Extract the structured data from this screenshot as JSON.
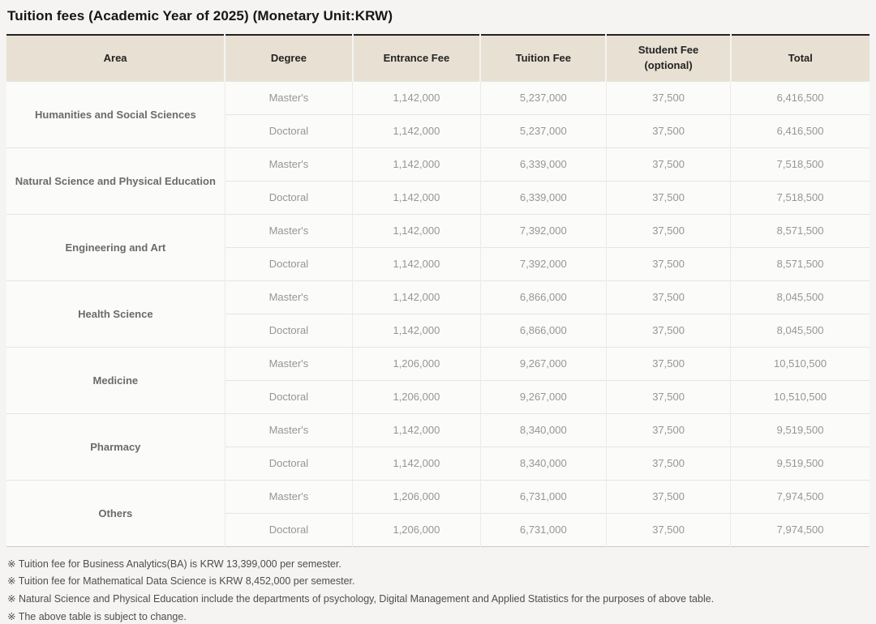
{
  "title": "Tuition fees (Academic Year of 2025) (Monetary Unit:KRW)",
  "colors": {
    "header_bg": "#e8e0d2",
    "table_top_border": "#222222",
    "table_bottom_border": "#c9c8c6",
    "page_bg": "#f5f4f2",
    "cell_bg": "#fbfbfa",
    "body_text": "#979693",
    "area_text": "#6b6b6b",
    "header_text": "#232323",
    "footnote_text": "#4e4e4e"
  },
  "table": {
    "columns": {
      "area": "Area",
      "degree": "Degree",
      "entrance_fee": "Entrance Fee",
      "tuition_fee": "Tuition Fee",
      "student_fee_line1": "Student Fee",
      "student_fee_line2": "(optional)",
      "total": "Total"
    },
    "groups": [
      {
        "area": "Humanities and Social Sciences",
        "rows": [
          {
            "degree": "Master's",
            "entrance_fee": "1,142,000",
            "tuition_fee": "5,237,000",
            "student_fee": "37,500",
            "total": "6,416,500"
          },
          {
            "degree": "Doctoral",
            "entrance_fee": "1,142,000",
            "tuition_fee": "5,237,000",
            "student_fee": "37,500",
            "total": "6,416,500"
          }
        ]
      },
      {
        "area": "Natural Science and Physical Education",
        "rows": [
          {
            "degree": "Master's",
            "entrance_fee": "1,142,000",
            "tuition_fee": "6,339,000",
            "student_fee": "37,500",
            "total": "7,518,500"
          },
          {
            "degree": "Doctoral",
            "entrance_fee": "1,142,000",
            "tuition_fee": "6,339,000",
            "student_fee": "37,500",
            "total": "7,518,500"
          }
        ]
      },
      {
        "area": "Engineering and Art",
        "rows": [
          {
            "degree": "Master's",
            "entrance_fee": "1,142,000",
            "tuition_fee": "7,392,000",
            "student_fee": "37,500",
            "total": "8,571,500"
          },
          {
            "degree": "Doctoral",
            "entrance_fee": "1,142,000",
            "tuition_fee": "7,392,000",
            "student_fee": "37,500",
            "total": "8,571,500"
          }
        ]
      },
      {
        "area": "Health Science",
        "rows": [
          {
            "degree": "Master's",
            "entrance_fee": "1,142,000",
            "tuition_fee": "6,866,000",
            "student_fee": "37,500",
            "total": "8,045,500"
          },
          {
            "degree": "Doctoral",
            "entrance_fee": "1,142,000",
            "tuition_fee": "6,866,000",
            "student_fee": "37,500",
            "total": "8,045,500"
          }
        ]
      },
      {
        "area": "Medicine",
        "rows": [
          {
            "degree": "Master's",
            "entrance_fee": "1,206,000",
            "tuition_fee": "9,267,000",
            "student_fee": "37,500",
            "total": "10,510,500"
          },
          {
            "degree": "Doctoral",
            "entrance_fee": "1,206,000",
            "tuition_fee": "9,267,000",
            "student_fee": "37,500",
            "total": "10,510,500"
          }
        ]
      },
      {
        "area": "Pharmacy",
        "rows": [
          {
            "degree": "Master's",
            "entrance_fee": "1,142,000",
            "tuition_fee": "8,340,000",
            "student_fee": "37,500",
            "total": "9,519,500"
          },
          {
            "degree": "Doctoral",
            "entrance_fee": "1,142,000",
            "tuition_fee": "8,340,000",
            "student_fee": "37,500",
            "total": "9,519,500"
          }
        ]
      },
      {
        "area": "Others",
        "rows": [
          {
            "degree": "Master's",
            "entrance_fee": "1,206,000",
            "tuition_fee": "6,731,000",
            "student_fee": "37,500",
            "total": "7,974,500"
          },
          {
            "degree": "Doctoral",
            "entrance_fee": "1,206,000",
            "tuition_fee": "6,731,000",
            "student_fee": "37,500",
            "total": "7,974,500"
          }
        ]
      }
    ]
  },
  "footnotes": [
    "※ Tuition fee for Business Analytics(BA) is KRW 13,399,000 per semester.",
    "※ Tuition fee for Mathematical Data Science is KRW 8,452,000 per semester.",
    "※ Natural Science and Physical Education include the departments of psychology, Digital Management and Applied Statistics for the purposes of above table.",
    "※ The above table is subject to change."
  ]
}
